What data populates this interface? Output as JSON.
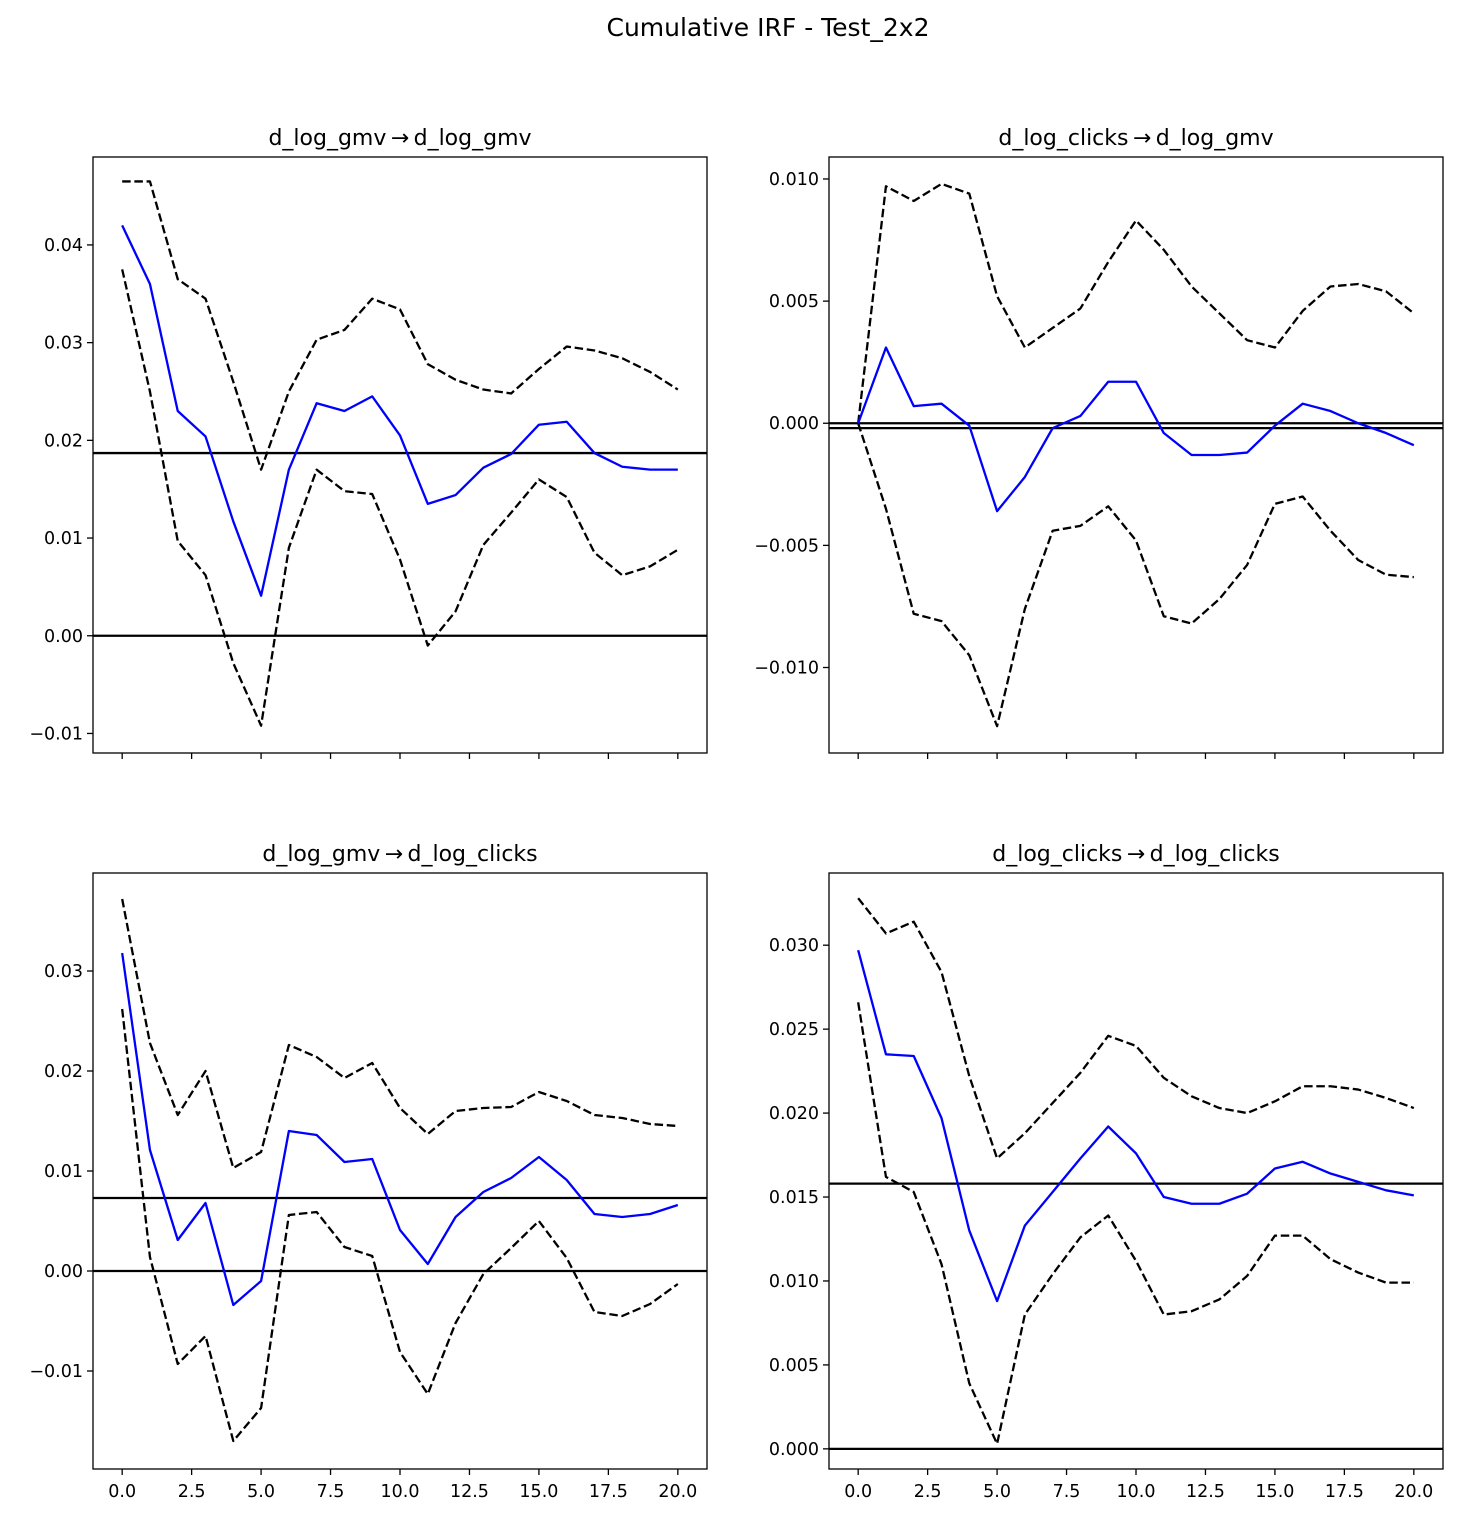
{
  "suptitle": "Cumulative IRF - Test_2x2",
  "chart_data": [
    {
      "type": "line",
      "title": "d_log_gmv → d_log_gmv",
      "x": [
        0,
        1,
        2,
        3,
        4,
        5,
        6,
        7,
        8,
        9,
        10,
        11,
        12,
        13,
        14,
        15,
        16,
        17,
        18,
        19,
        20
      ],
      "xticks": [
        0.0,
        2.5,
        5.0,
        7.5,
        10.0,
        12.5,
        15.0,
        17.5,
        20.0
      ],
      "xtick_labels_visible": false,
      "xlim": [
        -1.05,
        21.05
      ],
      "ylim": [
        -0.012,
        0.049
      ],
      "yticks": [
        -0.01,
        0.0,
        0.01,
        0.02,
        0.03,
        0.04
      ],
      "ytick_labels": [
        "−0.01",
        "0.00",
        "0.01",
        "0.02",
        "0.03",
        "0.04"
      ],
      "hlines": [
        0.0,
        0.0187
      ],
      "series": [
        {
          "role": "irf",
          "color": "#0000ff",
          "style": "solid",
          "values": [
            0.042,
            0.036,
            0.023,
            0.0204,
            0.0117,
            0.0041,
            0.017,
            0.0238,
            0.023,
            0.0245,
            0.0205,
            0.0135,
            0.0144,
            0.0172,
            0.0186,
            0.0216,
            0.0219,
            0.0187,
            0.0173,
            0.017,
            0.017
          ]
        },
        {
          "role": "upper_band",
          "color": "#000000",
          "style": "dashed",
          "values": [
            0.0465,
            0.0465,
            0.0365,
            0.0345,
            0.026,
            0.017,
            0.025,
            0.0303,
            0.0313,
            0.0345,
            0.0334,
            0.0278,
            0.0262,
            0.0252,
            0.0248,
            0.0273,
            0.0296,
            0.0292,
            0.0284,
            0.027,
            0.0252
          ]
        },
        {
          "role": "lower_band",
          "color": "#000000",
          "style": "dashed",
          "values": [
            0.0375,
            0.025,
            0.0097,
            0.0062,
            -0.0028,
            -0.0092,
            0.009,
            0.017,
            0.0148,
            0.0145,
            0.0078,
            -0.001,
            0.0025,
            0.0093,
            0.0126,
            0.016,
            0.0142,
            0.0085,
            0.0062,
            0.0071,
            0.0088
          ]
        }
      ]
    },
    {
      "type": "line",
      "title": "d_log_clicks → d_log_gmv",
      "x": [
        0,
        1,
        2,
        3,
        4,
        5,
        6,
        7,
        8,
        9,
        10,
        11,
        12,
        13,
        14,
        15,
        16,
        17,
        18,
        19,
        20
      ],
      "xticks": [
        0.0,
        2.5,
        5.0,
        7.5,
        10.0,
        12.5,
        15.0,
        17.5,
        20.0
      ],
      "xtick_labels_visible": false,
      "xlim": [
        -1.05,
        21.05
      ],
      "ylim": [
        -0.0135,
        0.0109
      ],
      "yticks": [
        -0.01,
        -0.005,
        0.0,
        0.005,
        0.01
      ],
      "ytick_labels": [
        "−0.010",
        "−0.005",
        "0.000",
        "0.005",
        "0.010"
      ],
      "hlines": [
        0.0,
        -0.0002
      ],
      "series": [
        {
          "role": "irf",
          "color": "#0000ff",
          "style": "solid",
          "values": [
            0.0,
            0.0031,
            0.0007,
            0.0008,
            -0.0001,
            -0.0036,
            -0.0022,
            -0.0002,
            0.0003,
            0.0017,
            0.0017,
            -0.0004,
            -0.0013,
            -0.0013,
            -0.0012,
            -0.0001,
            0.0008,
            0.0005,
            0.0,
            -0.0004,
            -0.0009
          ]
        },
        {
          "role": "upper_band",
          "color": "#000000",
          "style": "dashed",
          "values": [
            0.0,
            0.0097,
            0.0091,
            0.0098,
            0.0094,
            0.0052,
            0.0031,
            0.0039,
            0.0047,
            0.0066,
            0.0083,
            0.0071,
            0.0056,
            0.0045,
            0.0034,
            0.0031,
            0.0046,
            0.0056,
            0.0057,
            0.0054,
            0.0045
          ]
        },
        {
          "role": "lower_band",
          "color": "#000000",
          "style": "dashed",
          "values": [
            0.0,
            -0.0035,
            -0.0078,
            -0.0081,
            -0.0095,
            -0.0124,
            -0.0076,
            -0.0044,
            -0.0042,
            -0.0034,
            -0.0048,
            -0.0079,
            -0.0082,
            -0.0072,
            -0.0058,
            -0.0033,
            -0.003,
            -0.0044,
            -0.0056,
            -0.0062,
            -0.0063
          ]
        }
      ]
    },
    {
      "type": "line",
      "title": "d_log_gmv → d_log_clicks",
      "x": [
        0,
        1,
        2,
        3,
        4,
        5,
        6,
        7,
        8,
        9,
        10,
        11,
        12,
        13,
        14,
        15,
        16,
        17,
        18,
        19,
        20
      ],
      "xticks": [
        0.0,
        2.5,
        5.0,
        7.5,
        10.0,
        12.5,
        15.0,
        17.5,
        20.0
      ],
      "xtick_labels": [
        "0.0",
        "2.5",
        "5.0",
        "7.5",
        "10.0",
        "12.5",
        "15.0",
        "17.5",
        "20.0"
      ],
      "xtick_labels_visible": true,
      "xlim": [
        -1.05,
        21.05
      ],
      "ylim": [
        -0.0198,
        0.0398
      ],
      "yticks": [
        -0.01,
        0.0,
        0.01,
        0.02,
        0.03
      ],
      "ytick_labels": [
        "−0.01",
        "0.00",
        "0.01",
        "0.02",
        "0.03"
      ],
      "hlines": [
        0.0,
        0.0073
      ],
      "series": [
        {
          "role": "irf",
          "color": "#0000ff",
          "style": "solid",
          "values": [
            0.0318,
            0.0121,
            0.0031,
            0.0068,
            -0.0034,
            -0.001,
            0.014,
            0.0136,
            0.0109,
            0.0112,
            0.0041,
            0.0007,
            0.0054,
            0.0079,
            0.0093,
            0.0114,
            0.0091,
            0.0057,
            0.0054,
            0.0057,
            0.0066
          ]
        },
        {
          "role": "upper_band",
          "color": "#000000",
          "style": "dashed",
          "values": [
            0.0372,
            0.0228,
            0.0156,
            0.02,
            0.0103,
            0.0119,
            0.0226,
            0.0214,
            0.0193,
            0.0208,
            0.0163,
            0.0137,
            0.016,
            0.0163,
            0.0164,
            0.0179,
            0.017,
            0.0156,
            0.0153,
            0.0147,
            0.0145
          ]
        },
        {
          "role": "lower_band",
          "color": "#000000",
          "style": "dashed",
          "values": [
            0.0262,
            0.0014,
            -0.0093,
            -0.0065,
            -0.017,
            -0.0137,
            0.0056,
            0.0059,
            0.0024,
            0.0015,
            -0.0081,
            -0.0123,
            -0.0052,
            -0.0003,
            0.0023,
            0.005,
            0.0013,
            -0.0041,
            -0.0045,
            -0.0033,
            -0.0013
          ]
        }
      ]
    },
    {
      "type": "line",
      "title": "d_log_clicks → d_log_clicks",
      "x": [
        0,
        1,
        2,
        3,
        4,
        5,
        6,
        7,
        8,
        9,
        10,
        11,
        12,
        13,
        14,
        15,
        16,
        17,
        18,
        19,
        20
      ],
      "xticks": [
        0.0,
        2.5,
        5.0,
        7.5,
        10.0,
        12.5,
        15.0,
        17.5,
        20.0
      ],
      "xtick_labels": [
        "0.0",
        "2.5",
        "5.0",
        "7.5",
        "10.0",
        "12.5",
        "15.0",
        "17.5",
        "20.0"
      ],
      "xtick_labels_visible": true,
      "xlim": [
        -1.05,
        21.05
      ],
      "ylim": [
        -0.0012,
        0.0343
      ],
      "yticks": [
        0.0,
        0.005,
        0.01,
        0.015,
        0.02,
        0.025,
        0.03
      ],
      "ytick_labels": [
        "0.000",
        "0.005",
        "0.010",
        "0.015",
        "0.020",
        "0.025",
        "0.030"
      ],
      "hlines": [
        0.0,
        0.0158
      ],
      "series": [
        {
          "role": "irf",
          "color": "#0000ff",
          "style": "solid",
          "values": [
            0.0297,
            0.0235,
            0.0234,
            0.0197,
            0.013,
            0.0088,
            0.0133,
            0.0153,
            0.0173,
            0.0192,
            0.0176,
            0.015,
            0.0146,
            0.0146,
            0.0152,
            0.0167,
            0.0171,
            0.0164,
            0.0159,
            0.0154,
            0.0151
          ]
        },
        {
          "role": "upper_band",
          "color": "#000000",
          "style": "dashed",
          "values": [
            0.0328,
            0.0307,
            0.0314,
            0.0284,
            0.0222,
            0.0173,
            0.0188,
            0.0206,
            0.0224,
            0.0246,
            0.024,
            0.0221,
            0.021,
            0.0203,
            0.02,
            0.0207,
            0.0216,
            0.0216,
            0.0214,
            0.0209,
            0.0203
          ]
        },
        {
          "role": "lower_band",
          "color": "#000000",
          "style": "dashed",
          "values": [
            0.0266,
            0.0162,
            0.0153,
            0.011,
            0.0039,
            0.0003,
            0.008,
            0.0104,
            0.0126,
            0.0139,
            0.0112,
            0.008,
            0.0082,
            0.0089,
            0.0103,
            0.0127,
            0.0127,
            0.0113,
            0.0105,
            0.0099,
            0.0099
          ]
        }
      ]
    }
  ]
}
